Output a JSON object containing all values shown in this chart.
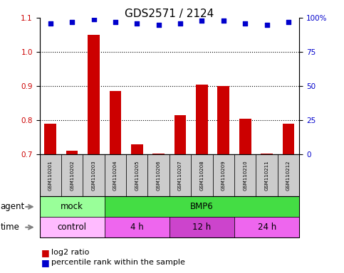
{
  "title": "GDS2571 / 2124",
  "samples": [
    "GSM110201",
    "GSM110202",
    "GSM110203",
    "GSM110204",
    "GSM110205",
    "GSM110206",
    "GSM110207",
    "GSM110208",
    "GSM110209",
    "GSM110210",
    "GSM110211",
    "GSM110212"
  ],
  "log2_ratio": [
    0.79,
    0.71,
    1.05,
    0.885,
    0.73,
    0.703,
    0.815,
    0.905,
    0.9,
    0.805,
    0.703,
    0.79
  ],
  "percentile": [
    96,
    97,
    99,
    97,
    96,
    95,
    96,
    98,
    98,
    96,
    95,
    97
  ],
  "ylim_left": [
    0.7,
    1.1
  ],
  "ylim_right": [
    0,
    100
  ],
  "yticks_left": [
    0.7,
    0.8,
    0.9,
    1.0,
    1.1
  ],
  "yticks_right": [
    0,
    25,
    50,
    75,
    100
  ],
  "bar_color": "#cc0000",
  "dot_color": "#0000cc",
  "agent_groups": [
    {
      "label": "mock",
      "start": 0,
      "end": 3,
      "color": "#99ff99"
    },
    {
      "label": "BMP6",
      "start": 3,
      "end": 12,
      "color": "#44dd44"
    }
  ],
  "time_groups": [
    {
      "label": "control",
      "start": 0,
      "end": 3,
      "color": "#ffbbff"
    },
    {
      "label": "4 h",
      "start": 3,
      "end": 6,
      "color": "#ee66ee"
    },
    {
      "label": "12 h",
      "start": 6,
      "end": 9,
      "color": "#cc44cc"
    },
    {
      "label": "24 h",
      "start": 9,
      "end": 12,
      "color": "#ee66ee"
    }
  ],
  "legend_items": [
    {
      "label": "log2 ratio",
      "color": "#cc0000"
    },
    {
      "label": "percentile rank within the sample",
      "color": "#0000cc"
    }
  ],
  "dotted_lines": [
    0.8,
    0.9,
    1.0
  ],
  "bar_width": 0.55,
  "sample_box_color": "#cccccc",
  "background_color": "#ffffff",
  "title_fontsize": 11,
  "tick_fontsize": 7.5,
  "label_fontsize": 8.5,
  "sample_fontsize": 5,
  "legend_fontsize": 8
}
